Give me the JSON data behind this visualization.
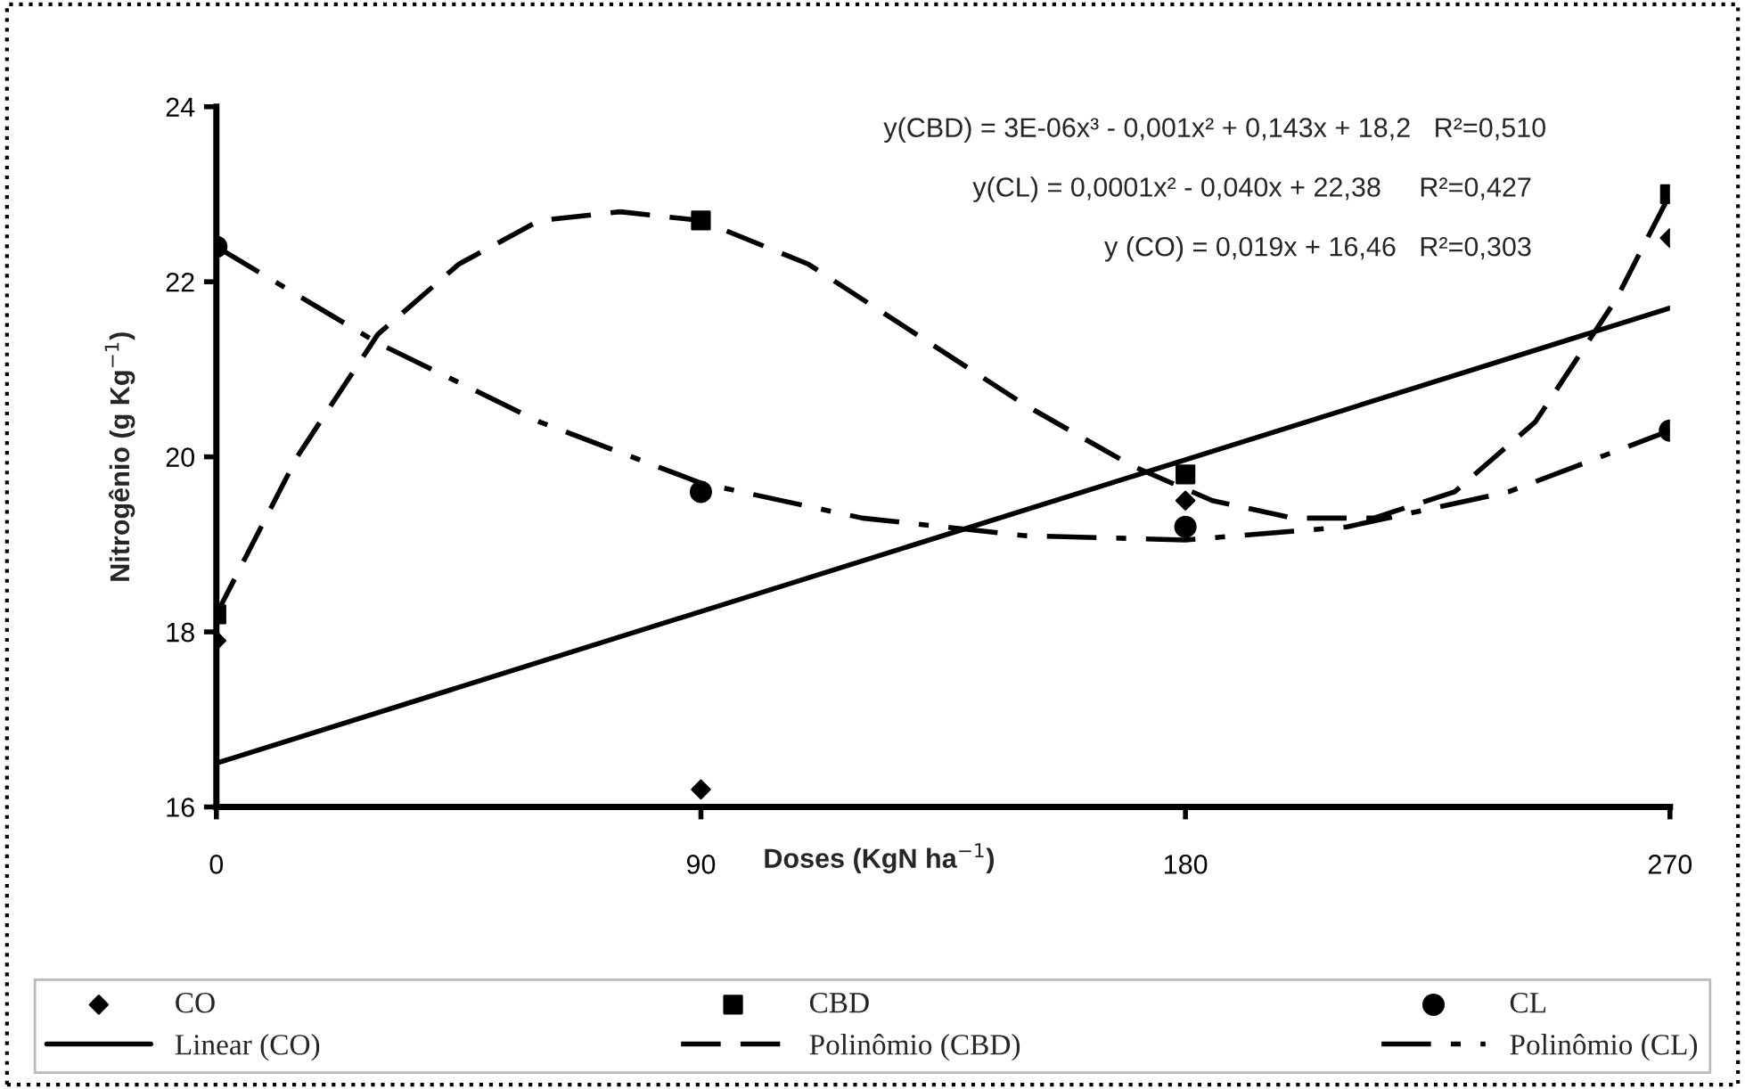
{
  "chart_data": {
    "type": "scatter",
    "xlabel": "Doses (KgN ha$^{−1}$)",
    "ylabel": "Nitrogênio (g Kg$^{−1}$)",
    "xlim": [
      0,
      270
    ],
    "xticks": [
      0,
      90,
      180,
      270
    ],
    "ylim": [
      16,
      24
    ],
    "yticks": [
      16,
      18,
      20,
      22,
      24
    ],
    "grid": false,
    "legend": "bottom",
    "annotations": [
      "y(CBD) = 3E-06x³ - 0,001x² + 0,143x + 18,2   R²=0,510",
      "y(CL) = 0,0001x² - 0,040x + 22,38     R²=0,427",
      "y (CO) = 0,019x + 16,46   R²=0,303"
    ],
    "series": [
      {
        "name": "CO",
        "marker": "diamond",
        "color": "#000000",
        "x": [
          0,
          90,
          180,
          270
        ],
        "values": [
          17.9,
          16.2,
          19.5,
          22.5
        ]
      },
      {
        "name": "CBD",
        "marker": "square",
        "color": "#000000",
        "x": [
          0,
          90,
          180,
          270
        ],
        "values": [
          18.2,
          22.7,
          19.8,
          23.0
        ]
      },
      {
        "name": "CL",
        "marker": "circle",
        "color": "#000000",
        "x": [
          0,
          90,
          180,
          270
        ],
        "values": [
          22.4,
          19.6,
          19.2,
          20.3
        ]
      },
      {
        "name": "Linear (CO)",
        "type": "line",
        "line_style": "solid",
        "color": "#000000",
        "x": [
          0,
          270
        ],
        "values": [
          16.5,
          21.7
        ]
      },
      {
        "name": "Polinômio (CBD)",
        "type": "line",
        "line_style": "dashed",
        "color": "#000000",
        "x": [
          0,
          15,
          30,
          45,
          60,
          75,
          90,
          110,
          130,
          150,
          170,
          185,
          200,
          215,
          230,
          245,
          260,
          270
        ],
        "values": [
          18.2,
          20.0,
          21.4,
          22.2,
          22.7,
          22.8,
          22.7,
          22.2,
          21.4,
          20.6,
          19.9,
          19.5,
          19.3,
          19.3,
          19.6,
          20.4,
          21.8,
          23.0
        ]
      },
      {
        "name": "Polinômio (CL)",
        "type": "line",
        "line_style": "dashdot",
        "color": "#000000",
        "x": [
          0,
          30,
          60,
          90,
          120,
          150,
          180,
          210,
          240,
          270
        ],
        "values": [
          22.4,
          21.3,
          20.4,
          19.7,
          19.3,
          19.1,
          19.05,
          19.2,
          19.6,
          20.3
        ]
      }
    ]
  }
}
